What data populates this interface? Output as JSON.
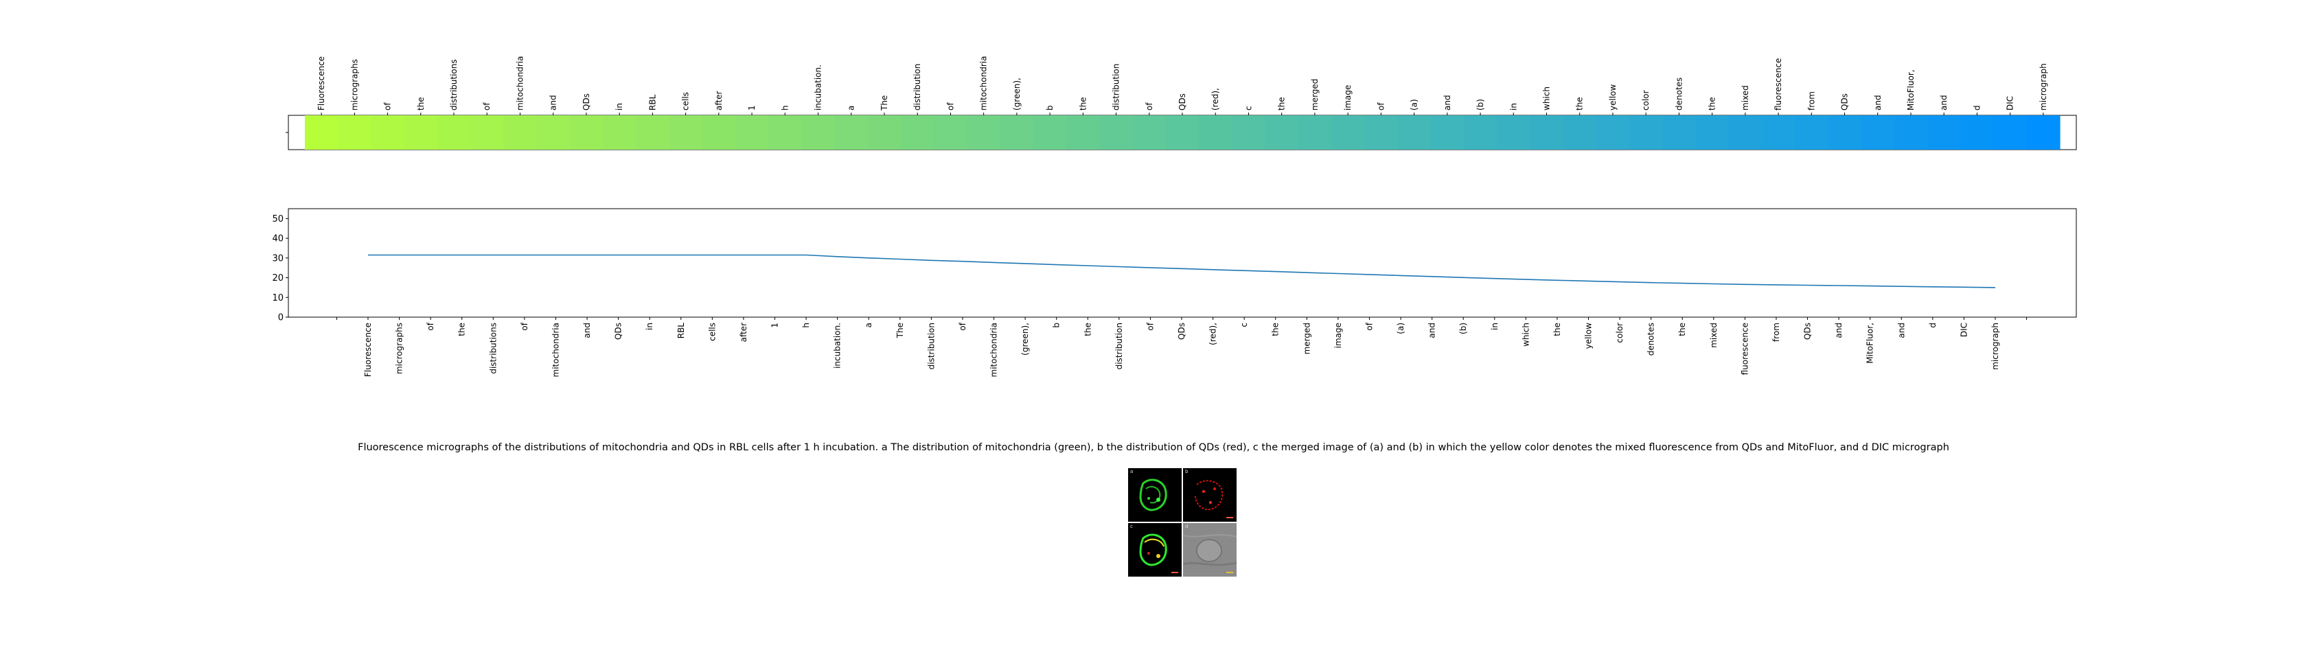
{
  "chart_data": [
    {
      "type": "heatmap",
      "xlabels": [
        "Fluorescence",
        "micrographs",
        "of",
        "the",
        "distributions",
        "of",
        "mitochondria",
        "and",
        "QDs",
        "in",
        "RBL",
        "cells",
        "after",
        "1",
        "h",
        "incubation.",
        "a",
        "The",
        "distribution",
        "of",
        "mitochondria",
        "(green),",
        "b",
        "the",
        "distribution",
        "of",
        "QDs",
        "(red),",
        "c",
        "the",
        "merged",
        "image",
        "of",
        "(a)",
        "and",
        "(b)",
        "in",
        "which",
        "the",
        "yellow",
        "color",
        "denotes",
        "the",
        "mixed",
        "fluorescence",
        "from",
        "QDs",
        "and",
        "MitoFluor,",
        "and",
        "d",
        "DIC",
        "micrograph"
      ],
      "color_start": "#b6fd3a",
      "color_end": "#0090ff",
      "legend": "none"
    },
    {
      "type": "line",
      "x": [
        "Fluorescence",
        "micrographs",
        "of",
        "the",
        "distributions",
        "of",
        "mitochondria",
        "and",
        "QDs",
        "in",
        "RBL",
        "cells",
        "after",
        "1",
        "h",
        "incubation.",
        "a",
        "The",
        "distribution",
        "of",
        "mitochondria",
        "(green),",
        "b",
        "the",
        "distribution",
        "of",
        "QDs",
        "(red),",
        "c",
        "the",
        "merged",
        "image",
        "of",
        "(a)",
        "and",
        "(b)",
        "in",
        "which",
        "the",
        "yellow",
        "color",
        "denotes",
        "the",
        "mixed",
        "fluorescence",
        "from",
        "QDs",
        "and",
        "MitoFluor,",
        "and",
        "d",
        "DIC",
        "micrograph"
      ],
      "series": [
        {
          "values": [
            31.5,
            31.5,
            31.5,
            31.5,
            31.5,
            31.5,
            31.5,
            31.5,
            31.5,
            31.5,
            31.5,
            31.5,
            31.5,
            31.5,
            31.5,
            30.7,
            30.0,
            29.4,
            28.8,
            28.3,
            27.7,
            27.2,
            26.6,
            26.1,
            25.6,
            25.1,
            24.6,
            24.1,
            23.6,
            23.1,
            22.6,
            22.1,
            21.6,
            21.1,
            20.6,
            20.1,
            19.6,
            19.1,
            18.7,
            18.3,
            17.9,
            17.5,
            17.2,
            16.9,
            16.6,
            16.4,
            16.2,
            16.0,
            15.8,
            15.6,
            15.4,
            15.2,
            15.0
          ],
          "color": "#1f77b4"
        }
      ],
      "yticks": [
        0,
        10,
        20,
        30,
        40,
        50
      ],
      "ylim": [
        0,
        55
      ],
      "grid": false,
      "legend": "none"
    }
  ],
  "caption": "Fluorescence micrographs of the distributions of mitochondria and QDs in RBL cells after 1 h incubation. a The distribution of mitochondria (green), b the distribution of QDs (red), c the merged image of (a) and (b) in which the yellow color denotes the mixed fluorescence from QDs and MitoFluor, and d DIC micrograph",
  "figure_panels": [
    {
      "label": "a",
      "content": "green-fluorescence"
    },
    {
      "label": "b",
      "content": "red-fluorescence"
    },
    {
      "label": "c",
      "content": "merged-fluorescence"
    },
    {
      "label": "d",
      "content": "dic-grayscale"
    }
  ]
}
